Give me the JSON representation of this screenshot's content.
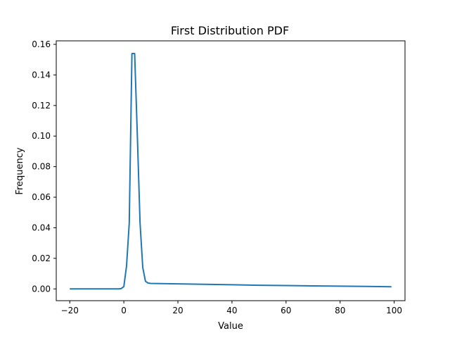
{
  "chart_data": {
    "type": "line",
    "title": "First Distribution PDF",
    "xlabel": "Value",
    "ylabel": "Frequency",
    "xlim": [
      -25,
      104
    ],
    "ylim": [
      -0.0077,
      0.1623
    ],
    "xticks": [
      -20,
      0,
      20,
      40,
      60,
      80,
      100
    ],
    "yticks": [
      0.0,
      0.02,
      0.04,
      0.06,
      0.08,
      0.1,
      0.12,
      0.14,
      0.16
    ],
    "ytick_labels": [
      "0.00",
      "0.02",
      "0.04",
      "0.06",
      "0.08",
      "0.10",
      "0.12",
      "0.14",
      "0.16"
    ],
    "grid": false,
    "series": [
      {
        "color": "#1f77b4",
        "x": [
          -20,
          -15,
          -10,
          -5,
          -2,
          -1,
          0,
          1,
          2,
          3,
          4,
          5,
          6,
          7,
          8,
          9,
          10,
          20,
          30,
          40,
          50,
          60,
          70,
          80,
          90,
          99
        ],
        "y": [
          0.0,
          0.0,
          0.0,
          0.0,
          0.0,
          0.0002,
          0.0015,
          0.015,
          0.043,
          0.154,
          0.154,
          0.1,
          0.043,
          0.014,
          0.005,
          0.0038,
          0.0036,
          0.0033,
          0.003,
          0.0027,
          0.0024,
          0.0022,
          0.002,
          0.0018,
          0.0016,
          0.0014
        ]
      }
    ]
  }
}
